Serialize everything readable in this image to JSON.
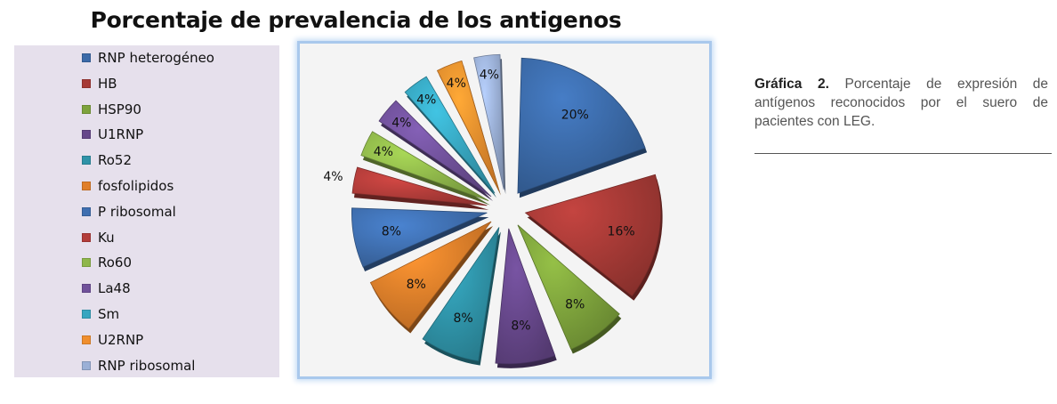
{
  "chart_data": {
    "type": "pie",
    "title": "Porcentaje de prevalencia de los antigenos",
    "legend_position": "left",
    "slices": [
      {
        "label": "RNP heterogéneo",
        "value": 20,
        "display": "20%",
        "color": "#3b6aa8"
      },
      {
        "label": "HB",
        "value": 16,
        "display": "16%",
        "color": "#a63a36"
      },
      {
        "label": "HSP90",
        "value": 8,
        "display": "8%",
        "color": "#7ea33c"
      },
      {
        "label": "U1RNP",
        "value": 8,
        "display": "8%",
        "color": "#66478a"
      },
      {
        "label": "Ro52",
        "value": 8,
        "display": "8%",
        "color": "#2f93a8"
      },
      {
        "label": "fosfolipidos",
        "value": 8,
        "display": "8%",
        "color": "#e07f2a"
      },
      {
        "label": "P ribosomal",
        "value": 8,
        "display": "8%",
        "color": "#3f6fb0"
      },
      {
        "label": "Ku",
        "value": 4,
        "display": "4%",
        "color": "#b33d3a"
      },
      {
        "label": "Ro60",
        "value": 4,
        "display": "4%",
        "color": "#8fb74a"
      },
      {
        "label": "La48",
        "value": 4,
        "display": "4%",
        "color": "#70519a"
      },
      {
        "label": "Sm",
        "value": 4,
        "display": "4%",
        "color": "#37a6c0"
      },
      {
        "label": "U2RNP",
        "value": 4,
        "display": "4%",
        "color": "#f08f2e"
      },
      {
        "label": "RNP ribosomal",
        "value": 4,
        "display": "4%",
        "color": "#9bb0d6"
      }
    ]
  },
  "caption": {
    "label": "Gráfica 2.",
    "text": "Porcentaje de expresión de antígenos reconocidos por el suero de pacientes con LEG."
  }
}
